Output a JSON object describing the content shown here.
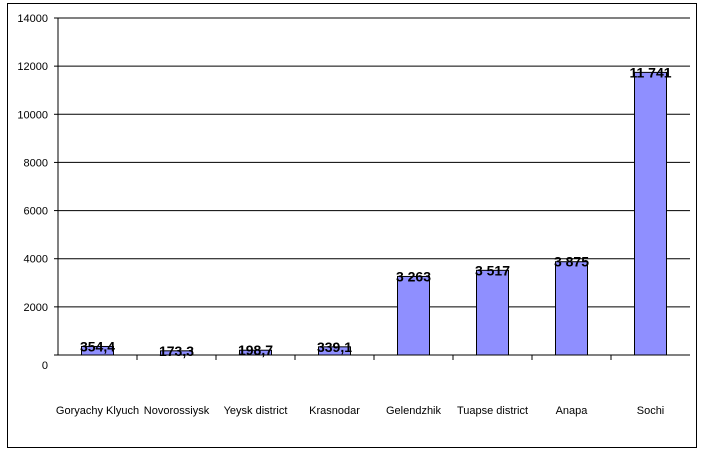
{
  "chart_data": {
    "type": "bar",
    "title": "",
    "xlabel": "",
    "ylabel": "",
    "categories": [
      "Goryachy Klyuch",
      "Novorossiysk",
      "Yeysk district",
      "Krasnodar",
      "Gelendzhik",
      "Tuapse district",
      "Anapa",
      "Sochi"
    ],
    "values": [
      354.4,
      173.3,
      198.7,
      339.1,
      3263,
      3517,
      3875,
      11741
    ],
    "value_labels": [
      "354,4",
      "173,3",
      "198,7",
      "339,1",
      "3 263",
      "3 517",
      "3 875",
      "11 741"
    ],
    "y_ticks": [
      "0",
      "2000",
      "4000",
      "6000",
      "8000",
      "10000",
      "12000",
      "14000"
    ],
    "ylim": [
      0,
      14000
    ],
    "grid": true,
    "legend": "none",
    "colors": {
      "bar_fill": "#8f8fff",
      "bar_stroke": "#000000",
      "grid": "#000000"
    }
  }
}
